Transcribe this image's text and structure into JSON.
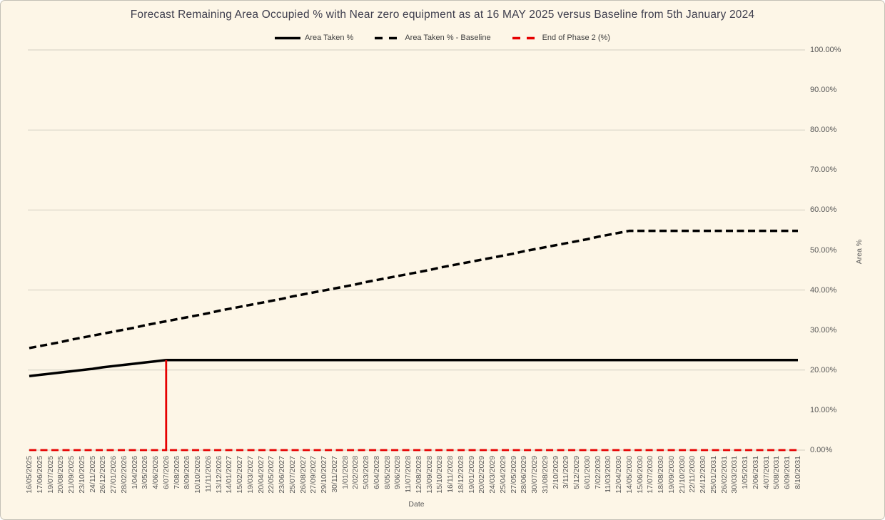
{
  "colors": {
    "background": "#fdf6e7",
    "border": "#c4c0b6",
    "grid": "#d2cdc2",
    "tick_text": "#595959",
    "title_text": "#3f3f4e",
    "series_black": "#000000",
    "series_red": "#e60000"
  },
  "chart_data": {
    "type": "line",
    "title": "Forecast Remaining Area Occupied % with Near zero equipment as at 16 MAY 2025 versus Baseline from 5th January 2024",
    "xlabel": "Date",
    "ylabel": "Area %",
    "ylim": [
      0,
      100
    ],
    "y_tick_labels": [
      "100.00%",
      "90.00%",
      "80.00%",
      "70.00%",
      "60.00%",
      "50.00%",
      "40.00%",
      "30.00%",
      "20.00%",
      "10.00%",
      "0.00%"
    ],
    "gridline_step": 20,
    "grid": "horizontal-only",
    "legend_position": "top-center",
    "categories": [
      "16/05/2025",
      "17/06/2025",
      "19/07/2025",
      "20/08/2025",
      "21/09/2025",
      "23/10/2025",
      "24/11/2025",
      "26/12/2025",
      "27/01/2026",
      "28/02/2026",
      "1/04/2026",
      "3/05/2026",
      "4/06/2026",
      "6/07/2026",
      "7/08/2026",
      "8/09/2026",
      "10/10/2026",
      "11/11/2026",
      "13/12/2026",
      "14/01/2027",
      "15/02/2027",
      "19/03/2027",
      "20/04/2027",
      "22/05/2027",
      "23/06/2027",
      "25/07/2027",
      "26/08/2027",
      "27/09/2027",
      "29/10/2027",
      "30/11/2027",
      "1/01/2028",
      "2/02/2028",
      "5/03/2028",
      "6/04/2028",
      "8/05/2028",
      "9/06/2028",
      "11/07/2028",
      "12/08/2028",
      "13/09/2028",
      "15/10/2028",
      "16/11/2028",
      "18/12/2028",
      "19/01/2029",
      "20/02/2029",
      "24/03/2029",
      "25/04/2029",
      "27/05/2029",
      "28/06/2029",
      "30/07/2029",
      "31/08/2029",
      "2/10/2029",
      "3/11/2029",
      "5/12/2029",
      "6/01/2030",
      "7/02/2030",
      "11/03/2030",
      "12/04/2030",
      "14/05/2030",
      "15/06/2030",
      "17/07/2030",
      "18/08/2030",
      "19/09/2030",
      "21/10/2030",
      "22/11/2030",
      "24/12/2030",
      "25/01/2031",
      "26/02/2031",
      "30/03/2031",
      "1/05/2031",
      "2/06/2031",
      "4/07/2031",
      "5/08/2031",
      "6/09/2031",
      "8/10/2031"
    ],
    "series": [
      {
        "name": "Area Taken %",
        "color": "#000000",
        "dash": "solid",
        "width": 3.5,
        "render": "line",
        "values": [
          18.5,
          18.8,
          19.1,
          19.4,
          19.7,
          20.0,
          20.3,
          20.7,
          21.0,
          21.3,
          21.6,
          21.9,
          22.2,
          22.5,
          22.5,
          22.5,
          22.5,
          22.5,
          22.5,
          22.5,
          22.5,
          22.5,
          22.5,
          22.5,
          22.5,
          22.5,
          22.5,
          22.5,
          22.5,
          22.5,
          22.5,
          22.5,
          22.5,
          22.5,
          22.5,
          22.5,
          22.5,
          22.5,
          22.5,
          22.5,
          22.5,
          22.5,
          22.5,
          22.5,
          22.5,
          22.5,
          22.5,
          22.5,
          22.5,
          22.5,
          22.5,
          22.5,
          22.5,
          22.5,
          22.5,
          22.5,
          22.5,
          22.5,
          22.5,
          22.5,
          22.5,
          22.5,
          22.5,
          22.5,
          22.5,
          22.5,
          22.5,
          22.5,
          22.5,
          22.5,
          22.5,
          22.5,
          22.5,
          22.5
        ]
      },
      {
        "name": "Area Taken % - Baseline",
        "color": "#000000",
        "dash": "dashed",
        "width": 3.5,
        "render": "line",
        "values": [
          25.5,
          26.0,
          26.5,
          27.0,
          27.6,
          28.1,
          28.6,
          29.1,
          29.6,
          30.1,
          30.6,
          31.2,
          31.7,
          32.2,
          32.7,
          33.2,
          33.7,
          34.2,
          34.8,
          35.3,
          35.8,
          36.3,
          36.8,
          37.3,
          37.8,
          38.4,
          38.9,
          39.4,
          39.9,
          40.4,
          40.9,
          41.4,
          42.0,
          42.5,
          43.0,
          43.5,
          44.0,
          44.5,
          45.0,
          45.6,
          46.1,
          46.6,
          47.1,
          47.6,
          48.1,
          48.6,
          49.1,
          49.7,
          50.2,
          50.7,
          51.2,
          51.7,
          52.2,
          52.7,
          53.3,
          53.8,
          54.3,
          54.8,
          54.8,
          54.8,
          54.8,
          54.8,
          54.8,
          54.8,
          54.8,
          54.8,
          54.8,
          54.8,
          54.8,
          54.8,
          54.8,
          54.8,
          54.8,
          54.8
        ]
      },
      {
        "name": "End of Phase 2 (%)",
        "color": "#e60000",
        "dash": "dashed",
        "width": 2.8,
        "render": "spike",
        "values": [
          0,
          0,
          0,
          0,
          0,
          0,
          0,
          0,
          0,
          0,
          0,
          0,
          0,
          22.5,
          0,
          0,
          0,
          0,
          0,
          0,
          0,
          0,
          0,
          0,
          0,
          0,
          0,
          0,
          0,
          0,
          0,
          0,
          0,
          0,
          0,
          0,
          0,
          0,
          0,
          0,
          0,
          0,
          0,
          0,
          0,
          0,
          0,
          0,
          0,
          0,
          0,
          0,
          0,
          0,
          0,
          0,
          0,
          0,
          0,
          0,
          0,
          0,
          0,
          0,
          0,
          0,
          0,
          0,
          0,
          0,
          0,
          0,
          0,
          0
        ]
      }
    ]
  }
}
